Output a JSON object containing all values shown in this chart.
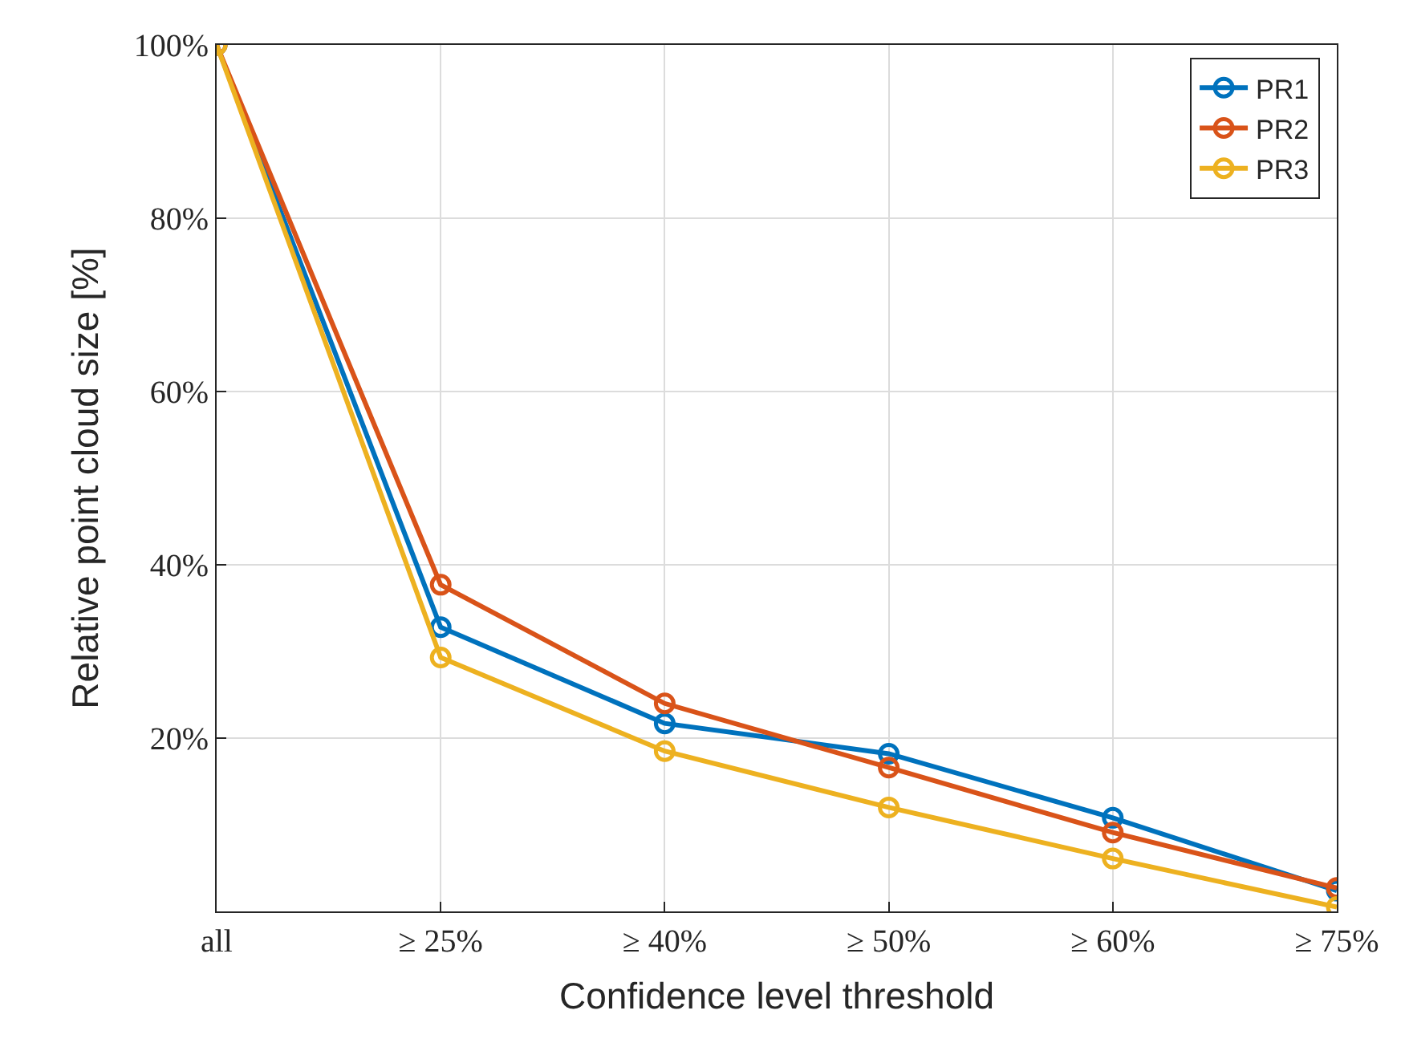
{
  "chart_data": {
    "type": "line",
    "xlabel": "Confidence level threshold",
    "ylabel": "Relative point cloud size [%]",
    "categories": [
      "all",
      "≥ 25%",
      "≥ 40%",
      "≥ 50%",
      "≥ 60%",
      "≥ 75%"
    ],
    "series": [
      {
        "name": "PR1",
        "color": "#0072bd",
        "values": [
          100,
          32.8,
          21.7,
          18.2,
          10.8,
          2.4
        ]
      },
      {
        "name": "PR2",
        "color": "#d95319",
        "values": [
          100,
          37.7,
          24.0,
          16.6,
          9.1,
          2.7
        ]
      },
      {
        "name": "PR3",
        "color": "#edb120",
        "values": [
          100,
          29.3,
          18.5,
          12.0,
          6.1,
          0.5
        ]
      }
    ],
    "ylim": [
      0,
      100
    ],
    "yticks": [
      {
        "value": 20,
        "label": "20%"
      },
      {
        "value": 40,
        "label": "40%"
      },
      {
        "value": 60,
        "label": "60%"
      },
      {
        "value": 80,
        "label": "80%"
      },
      {
        "value": 100,
        "label": "100%"
      }
    ],
    "grid": true,
    "legend": "top right",
    "marker": "circle",
    "line_style": "solid"
  }
}
